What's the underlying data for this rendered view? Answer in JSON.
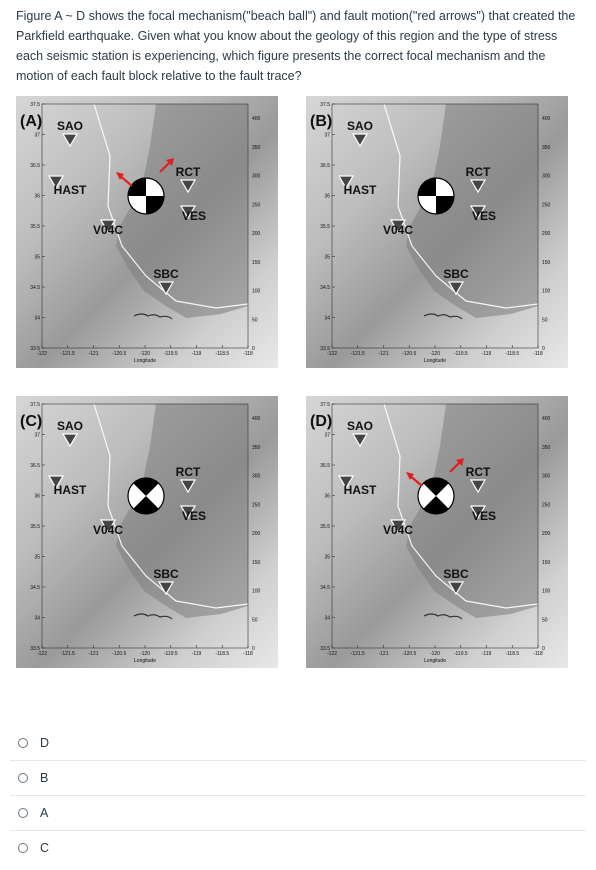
{
  "question": {
    "text": "Figure A ~ D shows the focal mechanism(\"beach ball\") and fault motion(\"red arrows\") that created the Parkfield earthquake.  Given what you know about the geology of this region and the type of stress each seismic station is experiencing, which figure presents the correct focal mechanism and the motion of each fault block relative to the fault trace?"
  },
  "figure": {
    "panels": [
      {
        "label": "(A)",
        "ball": "oblique",
        "arrows": "red"
      },
      {
        "label": "(B)",
        "ball": "oblique",
        "arrows": "none"
      },
      {
        "label": "(C)",
        "ball": "upright",
        "arrows": "none"
      },
      {
        "label": "(D)",
        "ball": "upright",
        "arrows": "red"
      }
    ],
    "stations": {
      "sao": "SAO",
      "hast": "HAST",
      "v04c": "V04C",
      "rct": "RCT",
      "ves": "VES",
      "sbc": "SBC"
    },
    "y_ticks": [
      "37.5",
      "37",
      "36.5",
      "36",
      "35.5",
      "35",
      "34.5",
      "34",
      "33.5"
    ],
    "x_ticks": [
      "-122",
      "-121.5",
      "-121",
      "-120.5",
      "-120",
      "-119.5",
      "-119",
      "-118.5",
      "-118"
    ],
    "x_label": "Longitude",
    "color_ticks": [
      "400",
      "350",
      "300",
      "250",
      "200",
      "150",
      "100",
      "50",
      "0"
    ],
    "colors": {
      "arrow": "#e02020",
      "station": "#444444"
    }
  },
  "choices": [
    {
      "label": "D"
    },
    {
      "label": "B"
    },
    {
      "label": "A"
    },
    {
      "label": "C"
    }
  ]
}
